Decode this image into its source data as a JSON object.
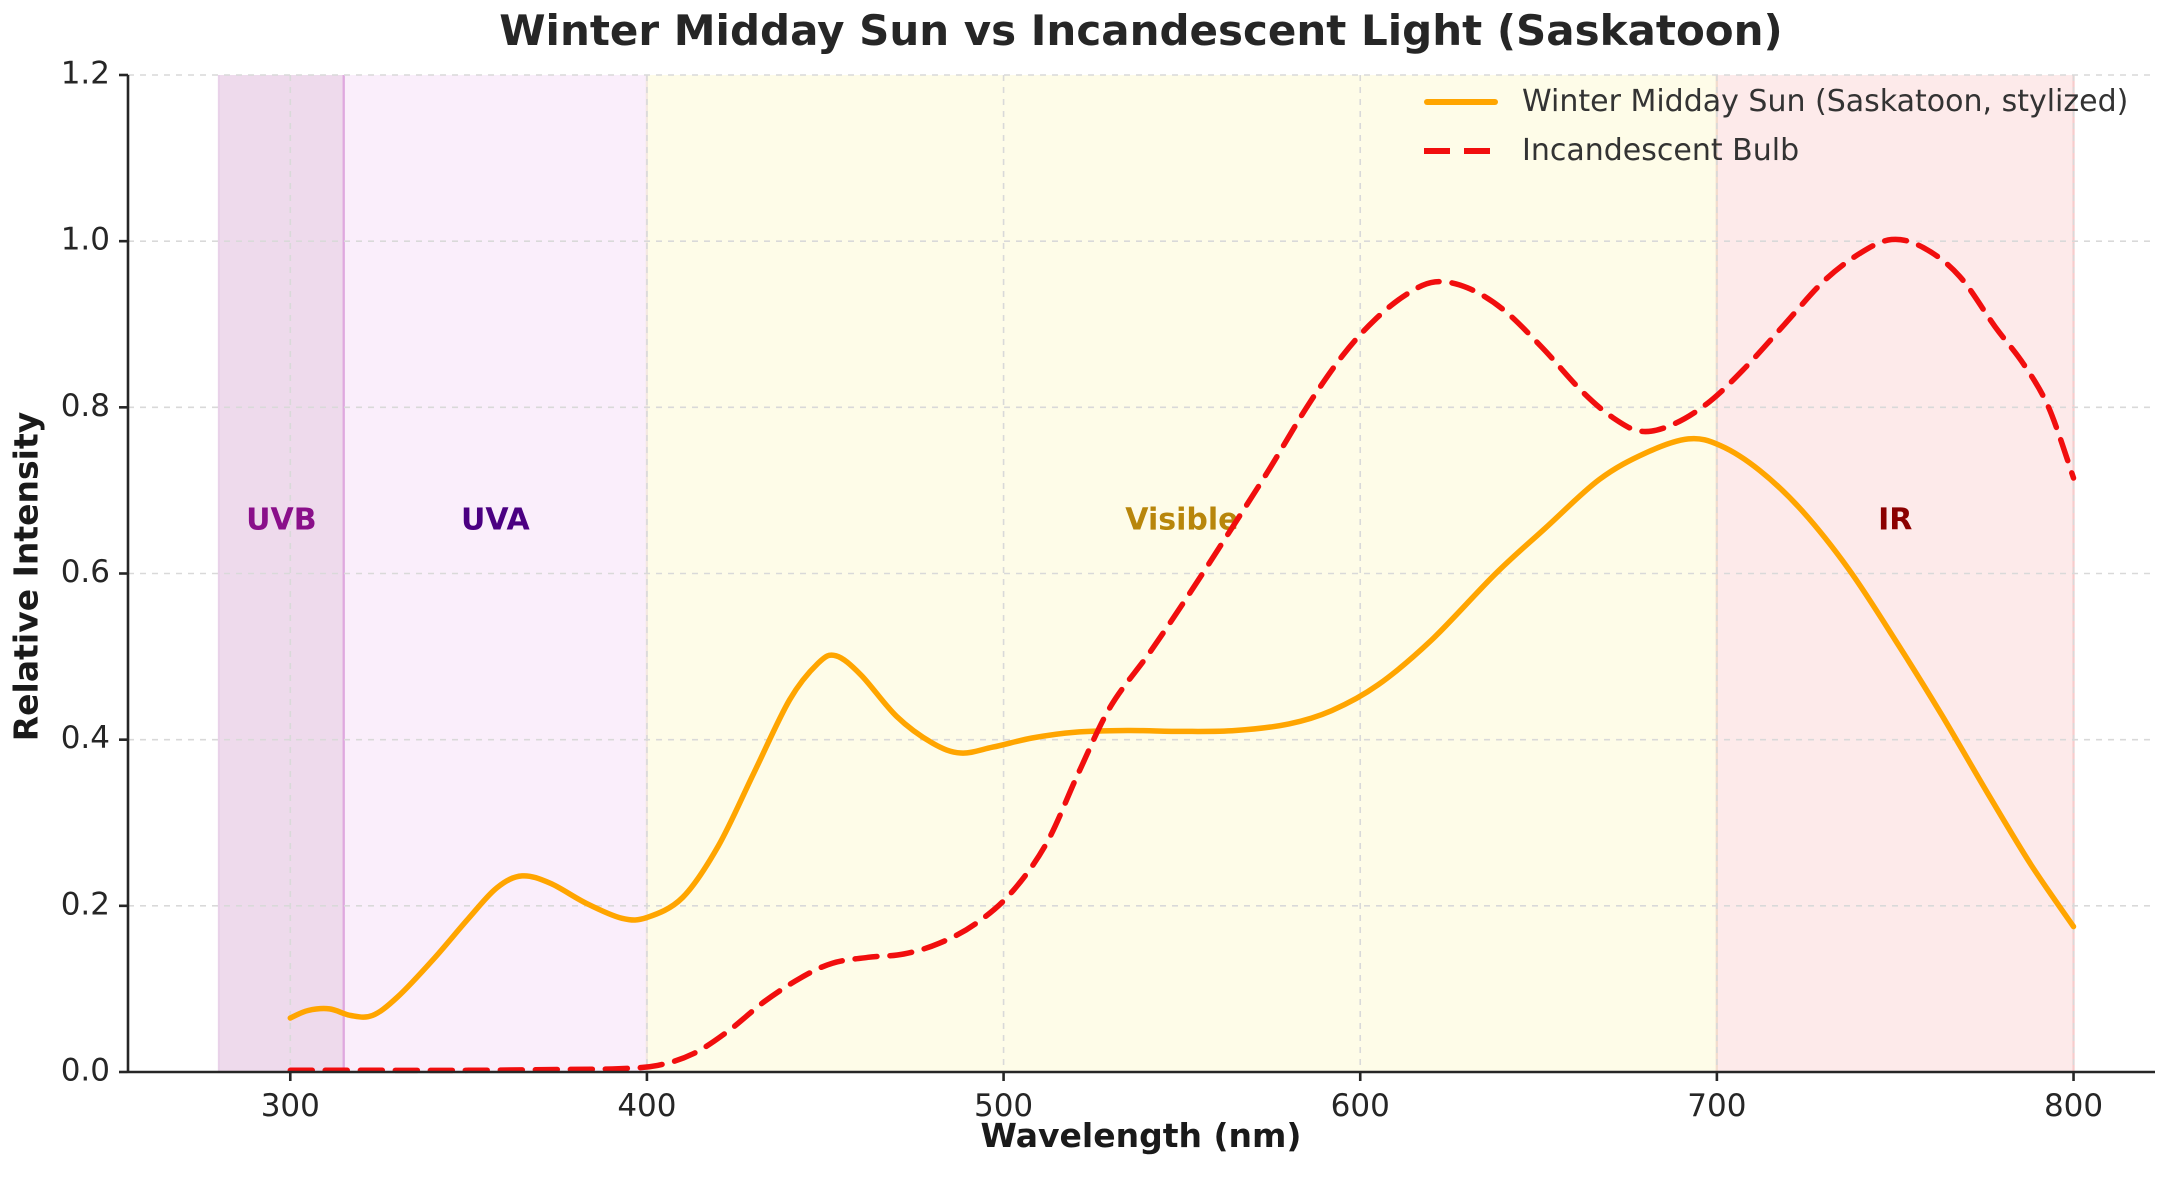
{
  "figure": {
    "title": "Winter Midday Sun vs Incandescent Light (Saskatoon)"
  },
  "chart_data": {
    "type": "line",
    "title": "Winter Midday Sun vs Incandescent Light (Saskatoon)",
    "xlabel": "Wavelength (nm)",
    "ylabel": "Relative Intensity",
    "xlim": [
      254.5,
      822
    ],
    "ylim": [
      0,
      1.2
    ],
    "xticks": [
      300,
      400,
      500,
      600,
      700,
      800
    ],
    "yticks": [
      0.0,
      0.2,
      0.4,
      0.6,
      0.8,
      1.0,
      1.2
    ],
    "grid": true,
    "grid_color": "#d9d9d9",
    "spine_color": "#262626",
    "tick_label_color": "#262626",
    "legend_position": "upper right",
    "legend_text_color": "#333333",
    "series": [
      {
        "name": "Winter Midday Sun (Saskatoon, stylized)",
        "color": "#FFA500",
        "style": "solid",
        "line_width": 5.5,
        "points": [
          [
            300,
            0.065
          ],
          [
            305,
            0.074
          ],
          [
            311,
            0.076
          ],
          [
            317,
            0.068
          ],
          [
            323,
            0.068
          ],
          [
            330,
            0.09
          ],
          [
            340,
            0.135
          ],
          [
            350,
            0.185
          ],
          [
            358,
            0.222
          ],
          [
            365,
            0.236
          ],
          [
            373,
            0.227
          ],
          [
            383,
            0.203
          ],
          [
            393,
            0.185
          ],
          [
            400,
            0.186
          ],
          [
            410,
            0.21
          ],
          [
            420,
            0.272
          ],
          [
            430,
            0.36
          ],
          [
            440,
            0.448
          ],
          [
            448,
            0.492
          ],
          [
            453,
            0.501
          ],
          [
            460,
            0.478
          ],
          [
            470,
            0.428
          ],
          [
            480,
            0.396
          ],
          [
            488,
            0.384
          ],
          [
            497,
            0.391
          ],
          [
            508,
            0.402
          ],
          [
            520,
            0.409
          ],
          [
            535,
            0.411
          ],
          [
            550,
            0.41
          ],
          [
            565,
            0.411
          ],
          [
            580,
            0.419
          ],
          [
            592,
            0.435
          ],
          [
            605,
            0.466
          ],
          [
            620,
            0.52
          ],
          [
            638,
            0.6
          ],
          [
            652,
            0.655
          ],
          [
            667,
            0.713
          ],
          [
            680,
            0.745
          ],
          [
            692,
            0.762
          ],
          [
            701,
            0.754
          ],
          [
            712,
            0.724
          ],
          [
            724,
            0.675
          ],
          [
            737,
            0.605
          ],
          [
            750,
            0.52
          ],
          [
            763,
            0.43
          ],
          [
            776,
            0.335
          ],
          [
            788,
            0.25
          ],
          [
            800,
            0.175
          ]
        ]
      },
      {
        "name": "Incandescent Bulb",
        "color": "#F10E0E",
        "style": "dashed",
        "line_width": 5.5,
        "points": [
          [
            300,
            0.002
          ],
          [
            325,
            0.002
          ],
          [
            350,
            0.002
          ],
          [
            375,
            0.003
          ],
          [
            392,
            0.004
          ],
          [
            403,
            0.008
          ],
          [
            413,
            0.022
          ],
          [
            423,
            0.05
          ],
          [
            433,
            0.085
          ],
          [
            443,
            0.113
          ],
          [
            452,
            0.131
          ],
          [
            462,
            0.138
          ],
          [
            472,
            0.142
          ],
          [
            482,
            0.155
          ],
          [
            492,
            0.178
          ],
          [
            502,
            0.215
          ],
          [
            512,
            0.275
          ],
          [
            521,
            0.36
          ],
          [
            530,
            0.44
          ],
          [
            541,
            0.505
          ],
          [
            552,
            0.575
          ],
          [
            563,
            0.648
          ],
          [
            574,
            0.722
          ],
          [
            585,
            0.8
          ],
          [
            595,
            0.862
          ],
          [
            604,
            0.905
          ],
          [
            613,
            0.936
          ],
          [
            621,
            0.951
          ],
          [
            630,
            0.944
          ],
          [
            640,
            0.918
          ],
          [
            651,
            0.872
          ],
          [
            662,
            0.82
          ],
          [
            671,
            0.787
          ],
          [
            679,
            0.771
          ],
          [
            688,
            0.78
          ],
          [
            698,
            0.807
          ],
          [
            708,
            0.848
          ],
          [
            719,
            0.9
          ],
          [
            730,
            0.952
          ],
          [
            740,
            0.985
          ],
          [
            749,
            1.002
          ],
          [
            758,
            0.992
          ],
          [
            768,
            0.958
          ],
          [
            778,
            0.897
          ],
          [
            786,
            0.852
          ],
          [
            793,
            0.8
          ],
          [
            800,
            0.715
          ]
        ]
      }
    ],
    "regions": [
      {
        "label": "UVB",
        "from": 280,
        "to": 315,
        "fill": "#eedaec",
        "edge_left": "#e9d2e9",
        "edge_right": "#dfa8df",
        "label_color": "#8a0f8a",
        "label_x": 297.5,
        "label_y": 0.663
      },
      {
        "label": "UVA",
        "from": 315,
        "to": 400,
        "fill": "#faeefb",
        "edge_left": "#dfa8df",
        "edge_right": "#f4e2f2",
        "label_color": "#4b0082",
        "label_x": 357.5,
        "label_y": 0.663
      },
      {
        "label": "Visible",
        "from": 400,
        "to": 700,
        "fill": "#fefce8",
        "edge_left": "#f4e9e0",
        "edge_right": "#f3dccd",
        "label_color": "#b8860b",
        "label_x": 550,
        "label_y": 0.663
      },
      {
        "label": "IR",
        "from": 700,
        "to": 800,
        "fill": "#fdeaea",
        "edge_left": "#f3dccd",
        "edge_right": "#f6cccc",
        "label_color": "#8b0000",
        "label_x": 750,
        "label_y": 0.663
      }
    ]
  }
}
